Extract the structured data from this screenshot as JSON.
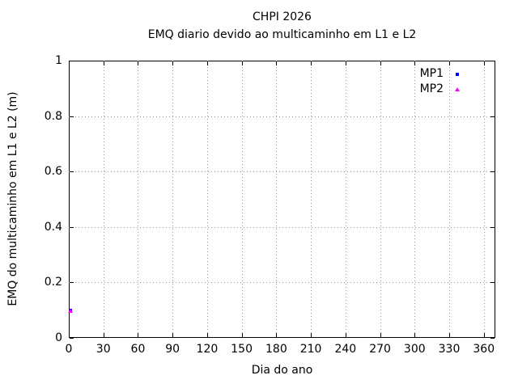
{
  "chart_data": {
    "type": "scatter",
    "title": "CHPI 2026",
    "subtitle": "EMQ diario devido ao multicaminho em L1 e L2",
    "xlabel": "Dia do ano",
    "ylabel": "EMQ do multicaminho em L1 e L2 (m)",
    "xlim": [
      0,
      370
    ],
    "ylim": [
      0,
      1
    ],
    "xticks": [
      0,
      30,
      60,
      90,
      120,
      150,
      180,
      210,
      240,
      270,
      300,
      330,
      360
    ],
    "yticks": [
      0,
      0.2,
      0.4,
      0.6,
      0.8,
      1
    ],
    "grid": true,
    "grid_color": "#999999",
    "border_color": "#000000",
    "legend_position": "top-right-inside",
    "series": [
      {
        "name": "MP1",
        "color": "#0000ff",
        "marker": "square",
        "points": [
          {
            "x": 1,
            "y": 0.1
          }
        ]
      },
      {
        "name": "MP2",
        "color": "#ff00ff",
        "marker": "triangle",
        "points": [
          {
            "x": 1,
            "y": 0.1
          }
        ]
      }
    ]
  }
}
